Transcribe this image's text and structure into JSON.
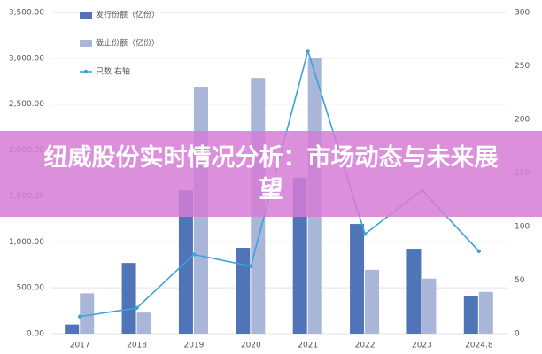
{
  "chart_data": {
    "type": "bar-line",
    "categories": [
      "2017",
      "2018",
      "2019",
      "2020",
      "2021",
      "2022",
      "2023",
      "2024.8"
    ],
    "series": [
      {
        "name": "发行份额（亿份）",
        "color": "#4f74b8",
        "type": "bar",
        "values": [
          100,
          770,
          1560,
          935,
          1700,
          1195,
          925,
          405
        ]
      },
      {
        "name": "截止份额（亿份）",
        "color": "#aab6d8",
        "type": "bar",
        "values": [
          440,
          230,
          2690,
          2785,
          3000,
          695,
          600,
          455
        ]
      },
      {
        "name": "只数 右轴",
        "color": "#3ba3d6",
        "type": "line",
        "axis": "y2",
        "values": [
          16,
          24,
          74,
          63,
          264,
          93,
          134,
          77
        ]
      }
    ],
    "ylim": [
      0,
      3500
    ],
    "yticks": [
      {
        "value": 0,
        "label": "0.00"
      },
      {
        "value": 500,
        "label": "500.00"
      },
      {
        "value": 1000,
        "label": "1,000.00"
      },
      {
        "value": 1500,
        "label": "1,500.00"
      },
      {
        "value": 2000,
        "label": "2,000.00"
      },
      {
        "value": 2500,
        "label": "2,500.00"
      },
      {
        "value": 3000,
        "label": "3,000.00"
      },
      {
        "value": 3500,
        "label": "3,500.00"
      }
    ],
    "y2lim": [
      0,
      300
    ],
    "y2ticks": [
      0,
      50,
      100,
      150,
      200,
      250,
      300
    ],
    "grid": true
  },
  "banner": {
    "title": "纽威股份实时情况分析：市场动态与未来展望"
  }
}
